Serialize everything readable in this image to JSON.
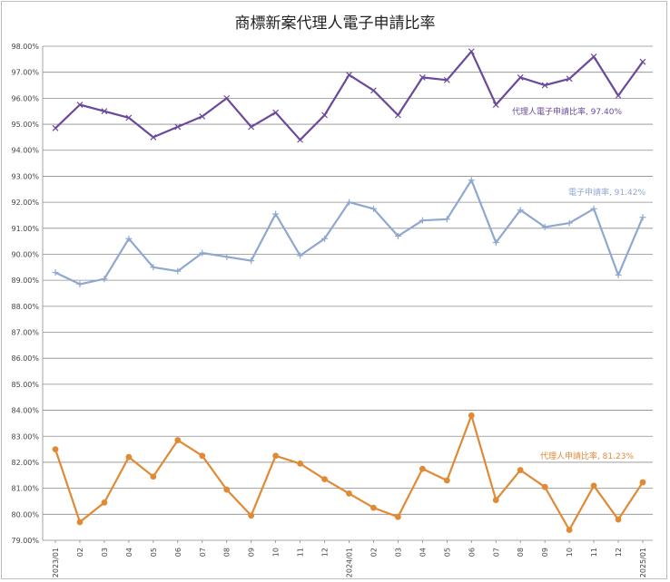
{
  "chart_data": {
    "type": "line",
    "title": "商標新案代理人電子申請比率",
    "xlabel": "",
    "ylabel": "",
    "ylim": [
      79.0,
      98.0
    ],
    "ytick_step": 1.0,
    "grid": true,
    "categories": [
      "2023/01",
      "02",
      "03",
      "04",
      "05",
      "06",
      "07",
      "08",
      "09",
      "10",
      "11",
      "12",
      "2024/01",
      "02",
      "03",
      "04",
      "05",
      "06",
      "07",
      "08",
      "09",
      "10",
      "11",
      "12",
      "2025/01"
    ],
    "series": [
      {
        "name": "代理人電子申請比率",
        "label": "代理人電子申請比率, 97.40%",
        "color": "#6a4a9a",
        "marker": "x",
        "values": [
          94.85,
          95.75,
          95.5,
          95.25,
          94.5,
          94.9,
          95.3,
          96.0,
          94.9,
          95.45,
          94.4,
          95.35,
          96.9,
          96.3,
          95.35,
          96.8,
          96.7,
          97.8,
          95.75,
          96.8,
          96.5,
          96.75,
          97.6,
          96.1,
          97.4
        ]
      },
      {
        "name": "電子申請率",
        "label": "電子申請率, 91.42%",
        "color": "#8fa8cf",
        "marker": "plus",
        "values": [
          89.3,
          88.85,
          89.05,
          90.6,
          89.5,
          89.35,
          90.05,
          89.9,
          89.75,
          91.55,
          89.95,
          90.6,
          92.0,
          91.75,
          90.7,
          91.3,
          91.35,
          92.85,
          90.45,
          91.7,
          91.05,
          91.2,
          91.75,
          89.2,
          91.42
        ]
      },
      {
        "name": "代理人申請比率",
        "label": "代理人申請比率, 81.23%",
        "color": "#e08a36",
        "marker": "circle",
        "values": [
          82.5,
          79.7,
          80.45,
          82.2,
          81.45,
          82.85,
          82.25,
          80.95,
          79.95,
          82.25,
          81.95,
          81.35,
          80.8,
          80.25,
          79.9,
          81.75,
          81.3,
          83.8,
          80.55,
          81.7,
          81.05,
          79.4,
          81.1,
          79.8,
          81.23
        ]
      }
    ]
  }
}
